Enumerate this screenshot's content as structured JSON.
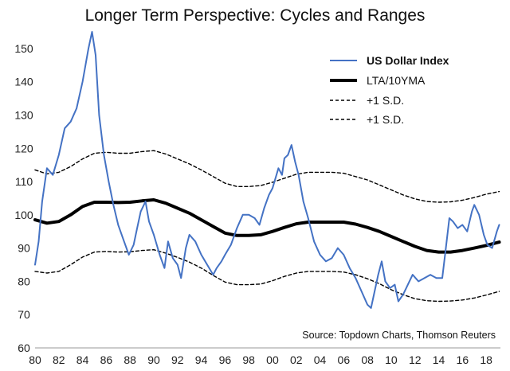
{
  "chart_data": {
    "type": "line",
    "title": "Longer Term Perspective: Cycles and Ranges",
    "xlabel": "",
    "ylabel": "",
    "xlim": [
      1980,
      2019.2
    ],
    "ylim": [
      60,
      155
    ],
    "y_ticks": [
      60,
      70,
      80,
      90,
      100,
      110,
      120,
      130,
      140,
      150
    ],
    "x_ticks": [
      1980,
      1982,
      1984,
      1986,
      1988,
      1990,
      1992,
      1994,
      1996,
      1998,
      2000,
      2002,
      2004,
      2006,
      2008,
      2010,
      2012,
      2014,
      2016,
      2018
    ],
    "x_tick_labels": [
      "80",
      "82",
      "84",
      "86",
      "88",
      "90",
      "92",
      "94",
      "96",
      "98",
      "00",
      "02",
      "04",
      "06",
      "08",
      "10",
      "12",
      "14",
      "16",
      "18"
    ],
    "legend_position": "top-right",
    "source": "Source: Topdown Charts, Thomson Reuters",
    "series": [
      {
        "name": "US Dollar Index",
        "color": "#4472c4",
        "style": "solid",
        "x": [
          1980.0,
          1980.3,
          1980.6,
          1981.0,
          1981.5,
          1982.0,
          1982.5,
          1983.0,
          1983.5,
          1984.0,
          1984.5,
          1984.8,
          1985.1,
          1985.4,
          1985.8,
          1986.2,
          1986.6,
          1987.0,
          1987.5,
          1987.9,
          1988.3,
          1988.6,
          1988.9,
          1989.3,
          1989.6,
          1990.0,
          1990.5,
          1990.9,
          1991.2,
          1991.6,
          1992.0,
          1992.3,
          1992.7,
          1993.0,
          1993.5,
          1994.0,
          1994.5,
          1995.0,
          1995.3,
          1995.7,
          1996.0,
          1996.5,
          1997.0,
          1997.5,
          1998.0,
          1998.5,
          1998.9,
          1999.3,
          1999.7,
          2000.0,
          2000.5,
          2000.8,
          2001.0,
          2001.3,
          2001.6,
          2001.9,
          2002.2,
          2002.6,
          2003.0,
          2003.5,
          2004.0,
          2004.5,
          2005.0,
          2005.5,
          2006.0,
          2006.5,
          2007.0,
          2007.5,
          2008.0,
          2008.3,
          2008.6,
          2008.9,
          2009.2,
          2009.5,
          2009.9,
          2010.3,
          2010.6,
          2011.0,
          2011.4,
          2011.8,
          2012.3,
          2012.8,
          2013.3,
          2013.8,
          2014.3,
          2014.6,
          2014.9,
          2015.2,
          2015.6,
          2016.0,
          2016.4,
          2016.8,
          2017.0,
          2017.4,
          2017.8,
          2018.1,
          2018.5,
          2018.9,
          2019.1
        ],
        "values": [
          85,
          92,
          104,
          114,
          112,
          118,
          126,
          128,
          132,
          140,
          150,
          155,
          148,
          130,
          118,
          110,
          103,
          97,
          92,
          88,
          91,
          96,
          101,
          104,
          98,
          94,
          88,
          84,
          92,
          87,
          85,
          81,
          90,
          94,
          92,
          88,
          85,
          82,
          84,
          86,
          88,
          91,
          96,
          100,
          100,
          99,
          97,
          102,
          106,
          108,
          114,
          112,
          117,
          118,
          121,
          116,
          112,
          104,
          99,
          92,
          88,
          86,
          87,
          90,
          88,
          84,
          81,
          77,
          73,
          72,
          77,
          82,
          86,
          80,
          78,
          79,
          74,
          76,
          79,
          82,
          80,
          81,
          82,
          81,
          81,
          90,
          99,
          98,
          96,
          97,
          95,
          101,
          103,
          100,
          94,
          91,
          90,
          95,
          97
        ]
      },
      {
        "name": "LTA/10YMA",
        "color": "#000000",
        "style": "thick",
        "x": [
          1980.0,
          1981.0,
          1982.0,
          1983.0,
          1984.0,
          1985.0,
          1986.0,
          1987.0,
          1988.0,
          1989.0,
          1990.0,
          1991.0,
          1992.0,
          1993.0,
          1994.0,
          1995.0,
          1996.0,
          1997.0,
          1998.0,
          1999.0,
          2000.0,
          2001.0,
          2002.0,
          2003.0,
          2004.0,
          2005.0,
          2006.0,
          2007.0,
          2008.0,
          2009.0,
          2010.0,
          2011.0,
          2012.0,
          2013.0,
          2014.0,
          2015.0,
          2016.0,
          2017.0,
          2018.0,
          2019.1
        ],
        "values": [
          98.5,
          97.5,
          98,
          100,
          102.5,
          103.8,
          103.8,
          103.7,
          103.8,
          104.2,
          104.5,
          103.5,
          102,
          100.5,
          98.5,
          96.5,
          94.5,
          93.8,
          93.8,
          94,
          95,
          96.2,
          97.3,
          97.8,
          97.8,
          97.8,
          97.8,
          97.2,
          96.2,
          95,
          93.5,
          92,
          90.5,
          89.3,
          88.8,
          88.8,
          89.3,
          90,
          90.8,
          91.8
        ]
      },
      {
        "name": "+1 S.D.",
        "color": "#000000",
        "style": "dashed",
        "x": [
          1980.0,
          1981.0,
          1982.0,
          1983.0,
          1984.0,
          1985.0,
          1986.0,
          1987.0,
          1988.0,
          1989.0,
          1990.0,
          1991.0,
          1992.0,
          1993.0,
          1994.0,
          1995.0,
          1996.0,
          1997.0,
          1998.0,
          1999.0,
          2000.0,
          2001.0,
          2002.0,
          2003.0,
          2004.0,
          2005.0,
          2006.0,
          2007.0,
          2008.0,
          2009.0,
          2010.0,
          2011.0,
          2012.0,
          2013.0,
          2014.0,
          2015.0,
          2016.0,
          2017.0,
          2018.0,
          2019.1
        ],
        "values": [
          113.5,
          112.3,
          112.8,
          114.5,
          116.8,
          118.5,
          118.8,
          118.5,
          118.5,
          119,
          119.3,
          118.3,
          116.8,
          115.3,
          113.5,
          111.5,
          109.5,
          108.5,
          108.5,
          108.8,
          109.8,
          111,
          112.2,
          112.8,
          112.8,
          112.8,
          112.5,
          111.5,
          110.5,
          109,
          107.5,
          106,
          104.8,
          104,
          103.8,
          103.9,
          104.4,
          105.2,
          106.2,
          107
        ]
      },
      {
        "name": "+1 S.D.",
        "color": "#000000",
        "style": "dashed",
        "x": [
          1980.0,
          1981.0,
          1982.0,
          1983.0,
          1984.0,
          1985.0,
          1986.0,
          1987.0,
          1988.0,
          1989.0,
          1990.0,
          1991.0,
          1992.0,
          1993.0,
          1994.0,
          1995.0,
          1996.0,
          1997.0,
          1998.0,
          1999.0,
          2000.0,
          2001.0,
          2002.0,
          2003.0,
          2004.0,
          2005.0,
          2006.0,
          2007.0,
          2008.0,
          2009.0,
          2010.0,
          2011.0,
          2012.0,
          2013.0,
          2014.0,
          2015.0,
          2016.0,
          2017.0,
          2018.0,
          2019.1
        ],
        "values": [
          83,
          82.5,
          83,
          85,
          87.3,
          88.8,
          89,
          88.8,
          88.9,
          89.3,
          89.5,
          88.5,
          87.2,
          85.8,
          84,
          81.8,
          79.8,
          79,
          79,
          79.2,
          80.2,
          81.5,
          82.5,
          83,
          83,
          83,
          82.8,
          82,
          80.8,
          79.3,
          77.5,
          76,
          74.8,
          74.2,
          74,
          74.1,
          74.4,
          75,
          75.9,
          77
        ]
      }
    ]
  }
}
